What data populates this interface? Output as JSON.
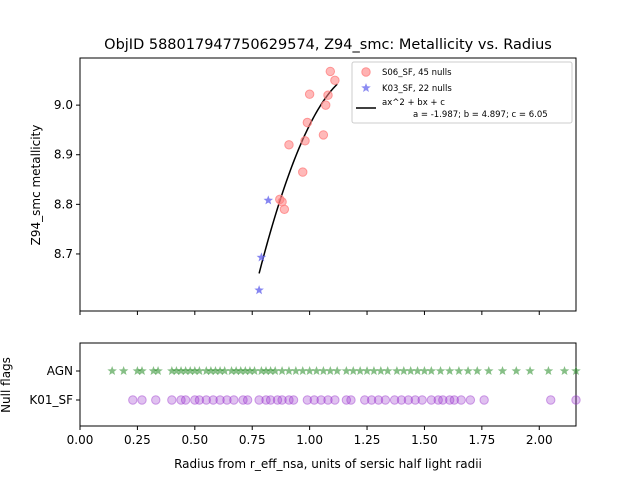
{
  "chart_data": [
    {
      "type": "scatter",
      "title": "ObjID 588017947750629574, Z94_smc: Metallicity vs. Radius",
      "xlabel": "",
      "ylabel": "Z94_smc metallicity",
      "xlim": [
        0.0,
        2.16
      ],
      "ylim": [
        8.585,
        9.095
      ],
      "yticks": [
        8.7,
        8.8,
        8.9,
        9.0
      ],
      "ytick_labels": [
        "8.7",
        "8.8",
        "8.9",
        "9.0"
      ],
      "xticks": [
        0.0,
        0.25,
        0.5,
        0.75,
        1.0,
        1.25,
        1.5,
        1.75,
        2.0
      ],
      "grid": false,
      "legend_position": "top-right",
      "series": [
        {
          "name": "S06_SF, 45 nulls",
          "marker": "circle",
          "color": "#ff7f7f",
          "points": [
            [
              0.87,
              8.81
            ],
            [
              0.88,
              8.805
            ],
            [
              0.89,
              8.79
            ],
            [
              0.91,
              8.92
            ],
            [
              0.97,
              8.865
            ],
            [
              0.98,
              8.928
            ],
            [
              0.99,
              8.965
            ],
            [
              1.0,
              9.022
            ],
            [
              1.06,
              8.94
            ],
            [
              1.07,
              9.0
            ],
            [
              1.08,
              9.02
            ],
            [
              1.09,
              9.068
            ],
            [
              1.11,
              9.05
            ]
          ]
        },
        {
          "name": "K03_SF, 22 nulls",
          "marker": "star",
          "color": "#6666ee",
          "points": [
            [
              0.78,
              8.627
            ],
            [
              0.79,
              8.693
            ],
            [
              0.82,
              8.808
            ]
          ]
        }
      ],
      "fit": {
        "name": "ax^2 + bx + c",
        "params": "a = -1.987; b = 4.897; c = 6.05",
        "a": -1.987,
        "b": 4.897,
        "c": 6.05,
        "x_range": [
          0.78,
          1.12
        ],
        "color": "#000000"
      }
    },
    {
      "type": "scatter",
      "title": "",
      "xlabel": "Radius from r_eff_nsa, units of sersic half light radii",
      "ylabel": "Null flags",
      "xlim": [
        0.0,
        2.16
      ],
      "xticks": [
        0.0,
        0.25,
        0.5,
        0.75,
        1.0,
        1.25,
        1.5,
        1.75,
        2.0
      ],
      "xtick_labels": [
        "0.00",
        "0.25",
        "0.50",
        "0.75",
        "1.00",
        "1.25",
        "1.50",
        "1.75",
        "2.00"
      ],
      "categories": [
        "AGN",
        "K01_SF"
      ],
      "series": [
        {
          "name": "AGN",
          "marker": "star",
          "color": "#228b22",
          "x": [
            0.14,
            0.19,
            0.25,
            0.27,
            0.32,
            0.34,
            0.4,
            0.42,
            0.44,
            0.46,
            0.48,
            0.5,
            0.52,
            0.55,
            0.57,
            0.59,
            0.61,
            0.63,
            0.66,
            0.68,
            0.7,
            0.72,
            0.74,
            0.76,
            0.79,
            0.81,
            0.83,
            0.85,
            0.88,
            0.91,
            0.94,
            0.97,
            1.0,
            1.03,
            1.06,
            1.09,
            1.12,
            1.16,
            1.19,
            1.22,
            1.25,
            1.28,
            1.31,
            1.34,
            1.38,
            1.41,
            1.44,
            1.47,
            1.5,
            1.53,
            1.57,
            1.61,
            1.65,
            1.69,
            1.73,
            1.78,
            1.84,
            1.9,
            1.96,
            2.04,
            2.11,
            2.16
          ]
        },
        {
          "name": "K01_SF",
          "marker": "circle",
          "color": "#9932cc",
          "x": [
            0.23,
            0.27,
            0.33,
            0.4,
            0.44,
            0.46,
            0.5,
            0.52,
            0.55,
            0.58,
            0.61,
            0.64,
            0.67,
            0.71,
            0.73,
            0.78,
            0.81,
            0.83,
            0.86,
            0.88,
            0.91,
            0.93,
            0.99,
            1.02,
            1.05,
            1.08,
            1.11,
            1.16,
            1.18,
            1.24,
            1.27,
            1.3,
            1.33,
            1.37,
            1.4,
            1.43,
            1.46,
            1.49,
            1.53,
            1.56,
            1.58,
            1.61,
            1.63,
            1.66,
            1.7,
            1.76,
            2.05,
            2.16
          ]
        }
      ]
    }
  ]
}
